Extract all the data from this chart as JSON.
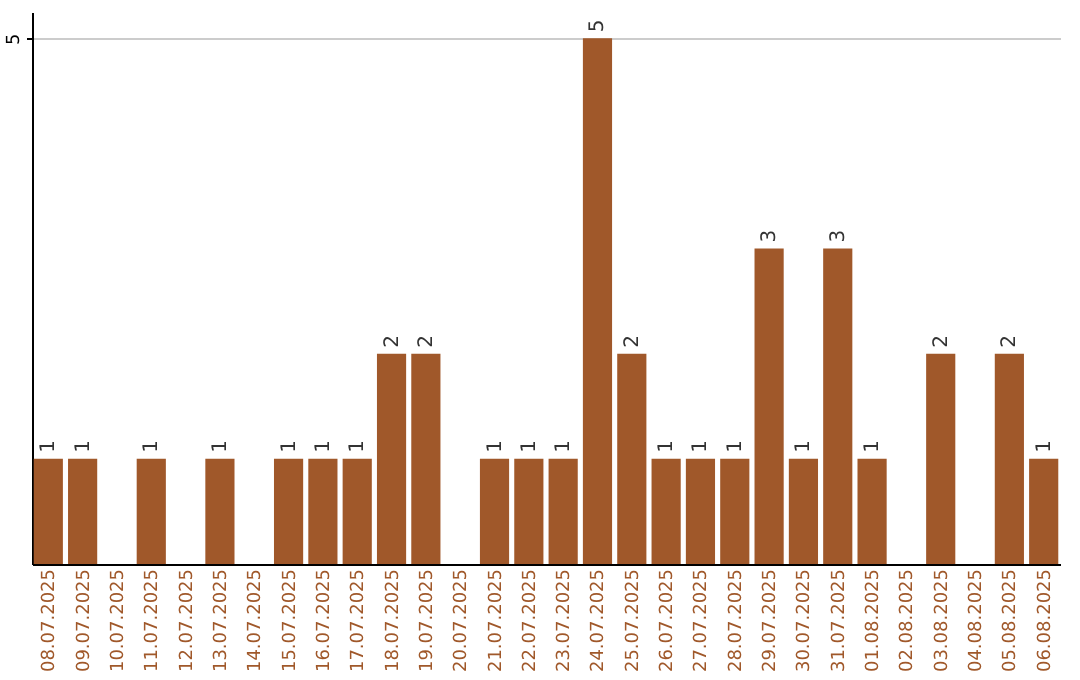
{
  "chart_data": {
    "type": "bar",
    "categories": [
      "08.07.2025",
      "09.07.2025",
      "10.07.2025",
      "11.07.2025",
      "12.07.2025",
      "13.07.2025",
      "14.07.2025",
      "15.07.2025",
      "16.07.2025",
      "17.07.2025",
      "18.07.2025",
      "19.07.2025",
      "20.07.2025",
      "21.07.2025",
      "22.07.2025",
      "23.07.2025",
      "24.07.2025",
      "25.07.2025",
      "26.07.2025",
      "27.07.2025",
      "28.07.2025",
      "29.07.2025",
      "30.07.2025",
      "31.07.2025",
      "01.08.2025",
      "02.08.2025",
      "03.08.2025",
      "04.08.2025",
      "05.08.2025",
      "06.08.2025"
    ],
    "values": [
      1,
      1,
      null,
      1,
      null,
      1,
      null,
      1,
      1,
      1,
      2,
      2,
      null,
      1,
      1,
      1,
      5,
      2,
      1,
      1,
      1,
      3,
      1,
      3,
      1,
      null,
      2,
      null,
      2,
      1
    ],
    "color": "#a0582a",
    "ylim": [
      0,
      5.25
    ],
    "yticks": [
      5
    ],
    "grid": "y",
    "data_labels": true
  }
}
